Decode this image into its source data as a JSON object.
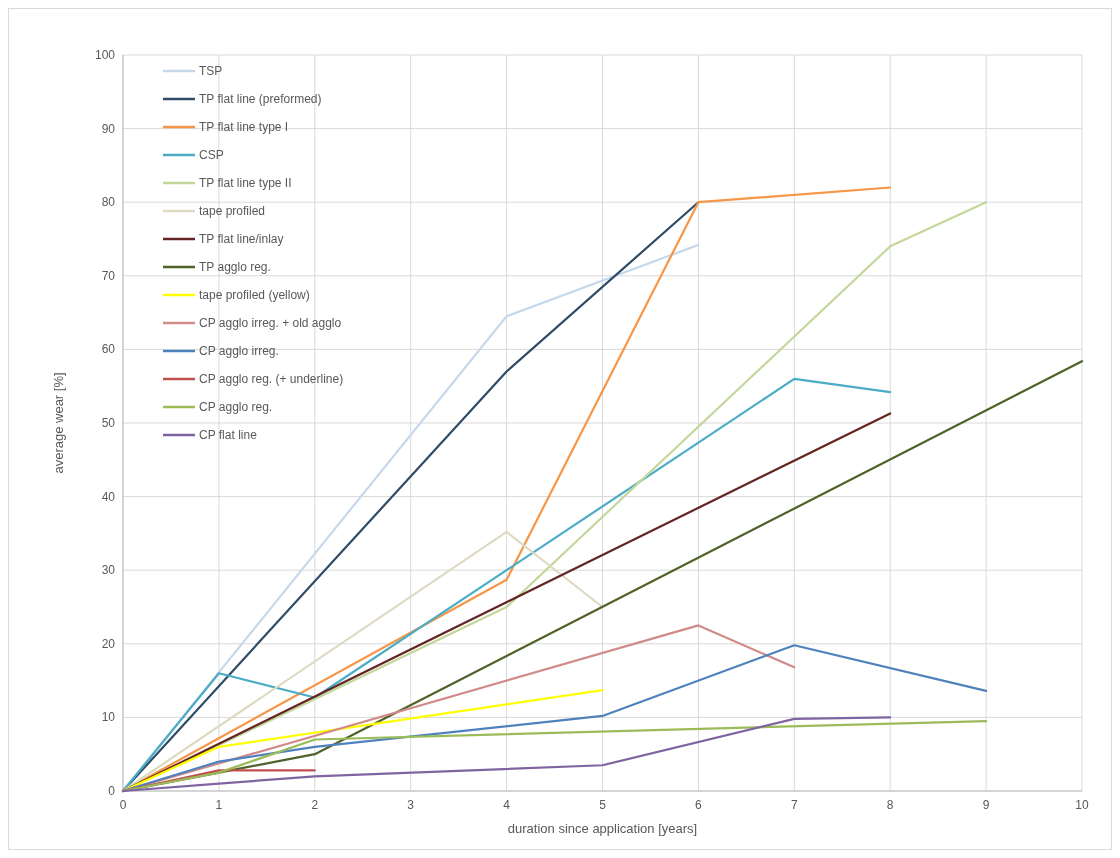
{
  "chart_data": {
    "type": "line",
    "xlabel": "duration since application [years]",
    "ylabel": "average wear [%]",
    "xlim": [
      0,
      10
    ],
    "xticks": [
      0,
      1,
      2,
      3,
      4,
      5,
      6,
      7,
      8,
      9,
      10
    ],
    "ylim": [
      0,
      100
    ],
    "yticks": [
      0,
      10,
      20,
      30,
      40,
      50,
      60,
      70,
      80,
      90,
      100
    ],
    "grid": true,
    "legend": "top left",
    "marker": "none",
    "line_style": "solid",
    "series": [
      {
        "name": "TSP",
        "color": "#c6d9ec",
        "x": [
          0,
          4,
          6
        ],
        "values": [
          0,
          64.5,
          74.2
        ]
      },
      {
        "name": "TP flat line (preformed)",
        "color": "#2f4b66",
        "x": [
          0,
          4,
          6
        ],
        "values": [
          0,
          57,
          80
        ]
      },
      {
        "name": "TP flat line type I",
        "color": "#f79646",
        "x": [
          0,
          4,
          6,
          8
        ],
        "values": [
          0,
          28.7,
          80,
          82
        ]
      },
      {
        "name": "CSP",
        "color": "#4bacc6",
        "x": [
          0,
          1,
          2,
          4,
          7,
          8
        ],
        "values": [
          0,
          16,
          12.7,
          30,
          56,
          54.2
        ]
      },
      {
        "name": "TP flat line type II",
        "color": "#c4d79b",
        "x": [
          0,
          4,
          8,
          9
        ],
        "values": [
          0,
          25,
          74,
          80
        ]
      },
      {
        "name": "tape profiled",
        "color": "#ddd9c3",
        "x": [
          0,
          4,
          5
        ],
        "values": [
          0,
          35.2,
          25
        ]
      },
      {
        "name": "TP flat line/inlay",
        "color": "#632523",
        "x": [
          0,
          8
        ],
        "values": [
          0,
          51.3
        ]
      },
      {
        "name": "TP agglo reg.",
        "color": "#4f6228",
        "x": [
          0,
          1,
          2,
          10
        ],
        "values": [
          0,
          2.5,
          5,
          58.4
        ]
      },
      {
        "name": "tape profiled (yellow)",
        "color": "#ffff00",
        "x": [
          0,
          1,
          5
        ],
        "values": [
          0,
          6,
          13.7
        ]
      },
      {
        "name": "CP agglo irreg. + old agglo",
        "color": "#d08a88",
        "x": [
          0,
          6,
          7
        ],
        "values": [
          0,
          22.5,
          16.8
        ]
      },
      {
        "name": "CP agglo irreg.",
        "color": "#4f81bd",
        "x": [
          0,
          1,
          2,
          5,
          7,
          9
        ],
        "values": [
          0,
          4,
          6,
          10.2,
          19.8,
          13.6
        ]
      },
      {
        "name": "CP agglo reg. (+ underline)",
        "color": "#c0504d",
        "x": [
          0,
          1,
          2
        ],
        "values": [
          0,
          2.8,
          2.8
        ]
      },
      {
        "name": "CP agglo reg.",
        "color": "#9bbb59",
        "x": [
          0,
          1,
          2,
          9
        ],
        "values": [
          0,
          2.5,
          7,
          9.5
        ]
      },
      {
        "name": "CP flat line",
        "color": "#8064a2",
        "x": [
          0,
          1,
          2,
          5,
          7,
          8
        ],
        "values": [
          0,
          1,
          2,
          3.5,
          9.8,
          10
        ]
      }
    ]
  }
}
